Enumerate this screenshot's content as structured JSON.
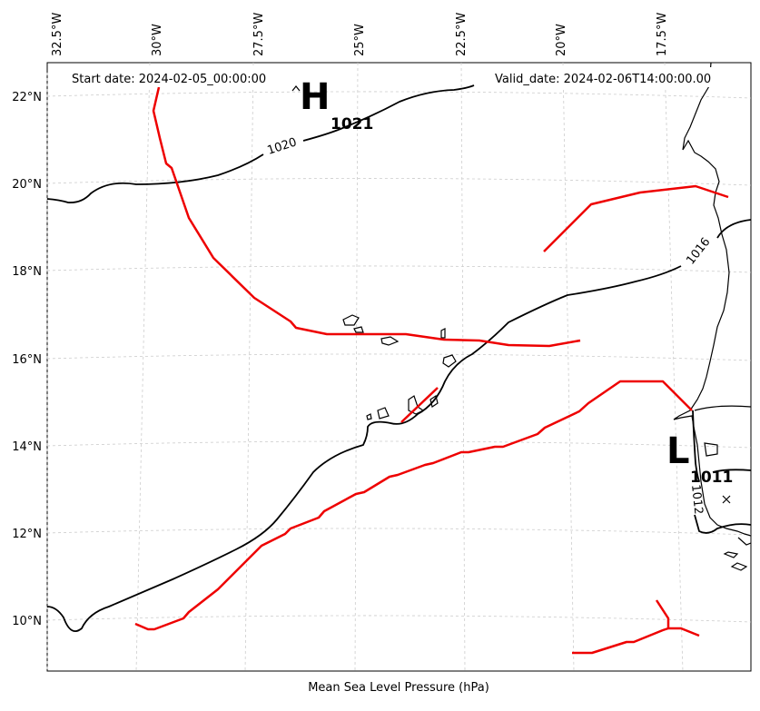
{
  "header": {
    "start_date": "Start date: 2024-02-05_00:00:00",
    "valid_date": "Valid_date: 2024-02-06T14:00:00.00"
  },
  "caption": "Mean Sea Level Pressure (hPa)",
  "axes": {
    "lon_ticks": [
      "32.5°W",
      "30°W",
      "27.5°W",
      "25°W",
      "22.5°W",
      "20°W",
      "17.5°W"
    ],
    "lat_ticks": [
      "22°N",
      "20°N",
      "18°N",
      "16°N",
      "14°N",
      "12°N",
      "10°N"
    ]
  },
  "pressure_centers": [
    {
      "symbol": "H",
      "value": "1021"
    },
    {
      "symbol": "L",
      "value": "1011"
    }
  ],
  "isobar_labels": [
    "1020",
    "1016",
    "1012"
  ],
  "colors": {
    "isobar": "#000000",
    "front": "#ee0000",
    "grid": "#cccccc",
    "coastline": "#000000"
  }
}
